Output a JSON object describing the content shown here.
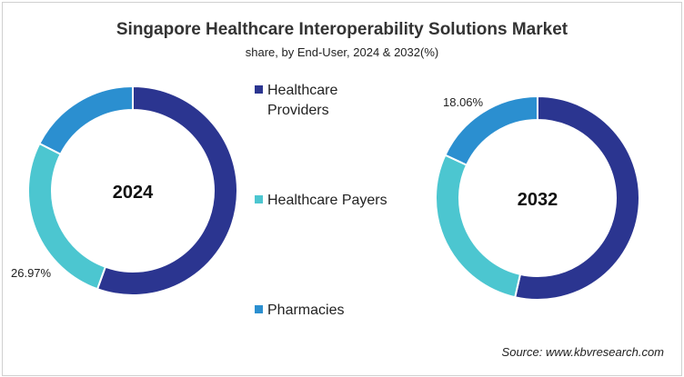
{
  "chart_data": [
    {
      "type": "pie",
      "donut": true,
      "title": "Singapore Healthcare Interoperability Solutions Market",
      "subtitle": "share, by End-User, 2024 & 2032(%)",
      "center_label": "2024",
      "categories": [
        "Healthcare Providers",
        "Healthcare Payers",
        "Pharmacies"
      ],
      "values": [
        55.5,
        26.97,
        17.53
      ],
      "data_labels": [
        {
          "category": "Healthcare Payers",
          "text": "26.97%"
        }
      ],
      "colors": [
        "#2b3590",
        "#4cc6d0",
        "#2b8fd0"
      ]
    },
    {
      "type": "pie",
      "donut": true,
      "center_label": "2032",
      "categories": [
        "Healthcare Providers",
        "Healthcare Payers",
        "Pharmacies"
      ],
      "values": [
        53.55,
        28.39,
        18.06
      ],
      "data_labels": [
        {
          "category": "Pharmacies",
          "text": "18.06%"
        }
      ],
      "colors": [
        "#2b3590",
        "#4cc6d0",
        "#2b8fd0"
      ]
    }
  ],
  "legend": {
    "placement": "center",
    "items": [
      {
        "label_line1": "Healthcare",
        "label_line2": "Providers",
        "color": "#2b3590"
      },
      {
        "label_line1": "Healthcare Payers",
        "label_line2": "",
        "color": "#4cc6d0"
      },
      {
        "label_line1": "Pharmacies",
        "label_line2": "",
        "color": "#2b8fd0"
      }
    ]
  },
  "source": "Source: www.kbvresearch.com"
}
